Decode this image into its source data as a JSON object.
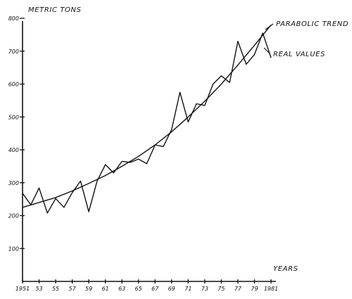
{
  "chart_data": {
    "type": "line",
    "ylabel": "METRIC TONS",
    "xlabel": "YEARS",
    "ylim": [
      0,
      800
    ],
    "xlim": [
      1951,
      1981
    ],
    "yticks": [
      100,
      200,
      300,
      400,
      500,
      600,
      700,
      800
    ],
    "xticks": [
      {
        "x": 1951,
        "label": "1951"
      },
      {
        "x": 1953,
        "label": "53"
      },
      {
        "x": 1955,
        "label": "55"
      },
      {
        "x": 1957,
        "label": "57"
      },
      {
        "x": 1959,
        "label": "59"
      },
      {
        "x": 1961,
        "label": "61"
      },
      {
        "x": 1963,
        "label": "63"
      },
      {
        "x": 1965,
        "label": "65"
      },
      {
        "x": 1967,
        "label": "67"
      },
      {
        "x": 1969,
        "label": "69"
      },
      {
        "x": 1971,
        "label": "71"
      },
      {
        "x": 1973,
        "label": "73"
      },
      {
        "x": 1975,
        "label": "75"
      },
      {
        "x": 1977,
        "label": "77"
      },
      {
        "x": 1979,
        "label": "79"
      },
      {
        "x": 1981,
        "label": "1981"
      }
    ],
    "series": [
      {
        "name": "REAL VALUES",
        "x": [
          1951,
          1952,
          1953,
          1954,
          1955,
          1956,
          1957,
          1958,
          1959,
          1960,
          1961,
          1962,
          1963,
          1964,
          1965,
          1966,
          1967,
          1968,
          1969,
          1970,
          1971,
          1972,
          1973,
          1974,
          1975,
          1976,
          1977,
          1978,
          1979,
          1980,
          1981
        ],
        "y": [
          268,
          233,
          284,
          208,
          252,
          225,
          270,
          305,
          212,
          305,
          355,
          330,
          365,
          362,
          372,
          358,
          415,
          410,
          462,
          575,
          485,
          540,
          535,
          600,
          625,
          605,
          730,
          660,
          690,
          755,
          680
        ]
      },
      {
        "name": "PARABOLIC TREND",
        "x": [
          1951,
          1953,
          1955,
          1957,
          1959,
          1961,
          1963,
          1965,
          1967,
          1969,
          1971,
          1973,
          1975,
          1977,
          1979,
          1981
        ],
        "y": [
          225,
          240,
          255,
          275,
          298,
          322,
          350,
          380,
          415,
          455,
          500,
          548,
          600,
          658,
          718,
          780
        ]
      }
    ],
    "grid": false,
    "legend": "right, labels at line ends"
  }
}
